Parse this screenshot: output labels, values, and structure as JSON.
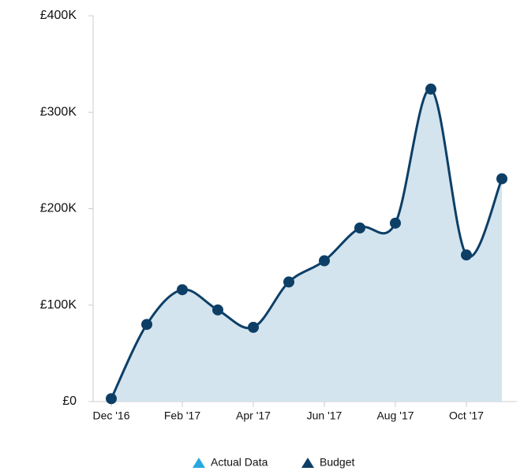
{
  "chart_data": {
    "type": "areaspline",
    "categories": [
      "Dec '16",
      null,
      "Feb '17",
      null,
      "Apr '17",
      null,
      "Jun '17",
      null,
      "Aug '17",
      null,
      "Oct '17",
      null
    ],
    "series": [
      {
        "name": "Actual Data",
        "color": "#29a8e0",
        "values": [
          null,
          null,
          null,
          null,
          null,
          null,
          null,
          null,
          null,
          null,
          null,
          null
        ]
      },
      {
        "name": "Budget",
        "color": "#0d3f66",
        "fill": "#d3e4ee",
        "values": [
          3,
          80,
          116,
          95,
          77,
          124,
          146,
          180,
          185,
          324,
          152,
          231
        ]
      }
    ],
    "ylim": [
      0,
      400
    ],
    "yticks": [
      {
        "value": 0,
        "label": "£0"
      },
      {
        "value": 100,
        "label": "£100K"
      },
      {
        "value": 200,
        "label": "£200K"
      },
      {
        "value": 300,
        "label": "£300K"
      },
      {
        "value": 400,
        "label": "£400K"
      }
    ],
    "grid": false
  }
}
